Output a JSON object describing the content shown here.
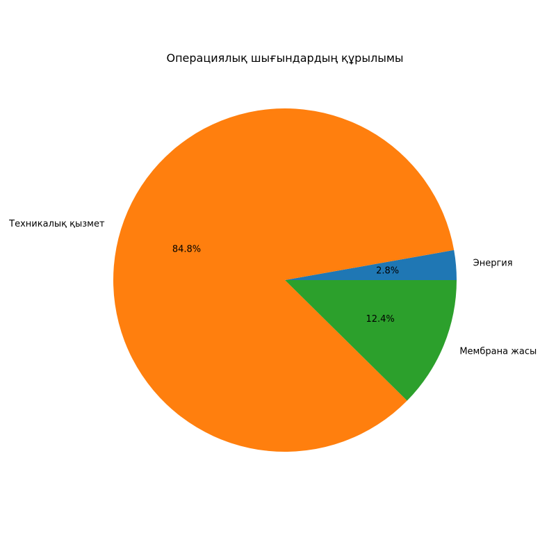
{
  "chart_data": {
    "type": "pie",
    "title": "Операциялық шығындардың құрылымы",
    "start_angle_deg": 0,
    "direction": "counterclockwise",
    "slices": [
      {
        "label": "Энергия",
        "value": 2.8,
        "pct_label": "2.8%",
        "color": "#1f77b4"
      },
      {
        "label": "Техникалық қызмет",
        "value": 84.8,
        "pct_label": "84.8%",
        "color": "#ff7f0e"
      },
      {
        "label": "Мембрана жасы",
        "value": 12.4,
        "pct_label": "12.4%",
        "color": "#2ca02c"
      }
    ]
  }
}
